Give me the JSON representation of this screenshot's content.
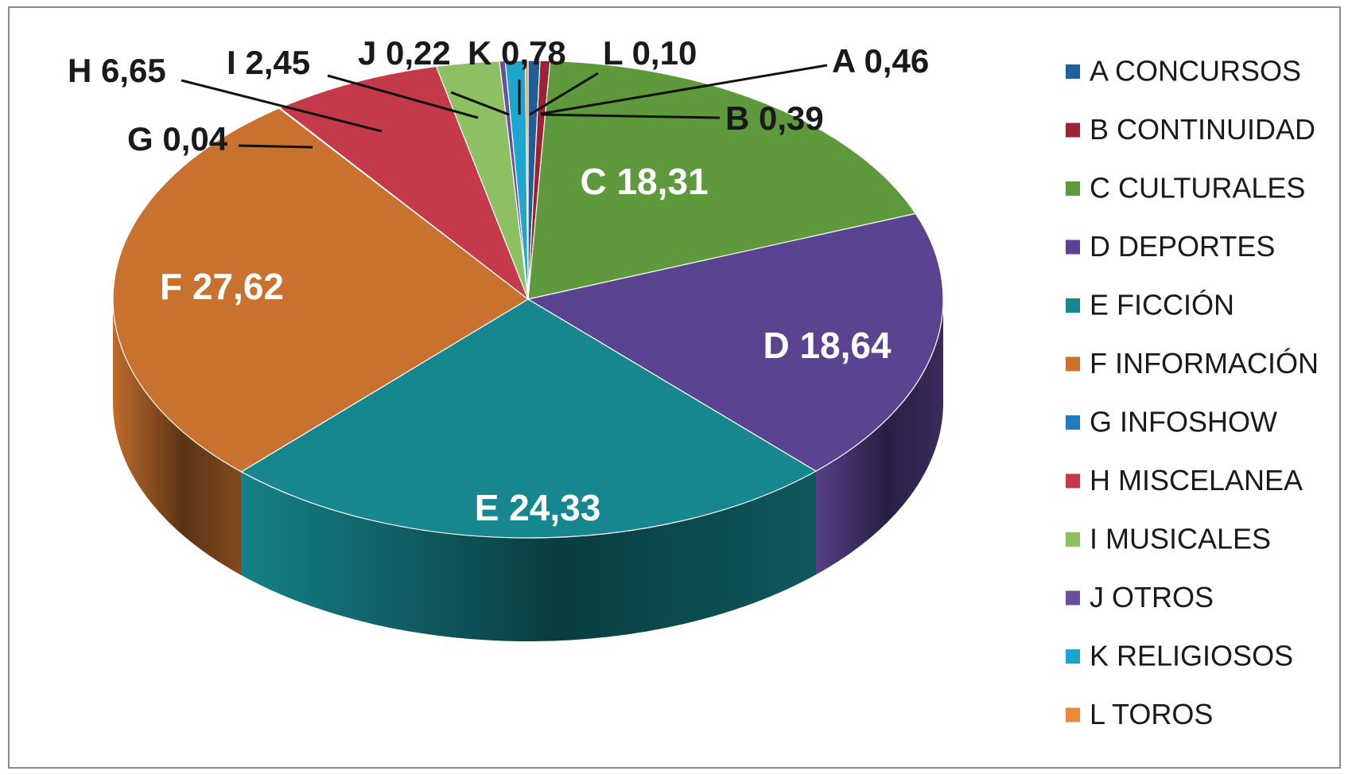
{
  "chart_data": {
    "type": "pie",
    "title": "",
    "slices": [
      {
        "key": "A",
        "category": "CONCURSOS",
        "value": 0.46,
        "value_label": "0,46",
        "color": "#1f5f9a"
      },
      {
        "key": "B",
        "category": "CONTINUIDAD",
        "value": 0.39,
        "value_label": "0,39",
        "color": "#9b2333"
      },
      {
        "key": "C",
        "category": "CULTURALES",
        "value": 18.31,
        "value_label": "18,31",
        "color": "#5e9a3c"
      },
      {
        "key": "D",
        "category": "DEPORTES",
        "value": 18.64,
        "value_label": "18,64",
        "color": "#5a4390"
      },
      {
        "key": "E",
        "category": "FICCIÓN",
        "value": 24.33,
        "value_label": "24,33",
        "color": "#16878f"
      },
      {
        "key": "F",
        "category": "INFORMACIÓN",
        "value": 27.62,
        "value_label": "27,62",
        "color": "#c9712e"
      },
      {
        "key": "G",
        "category": "INFOSHOW",
        "value": 0.04,
        "value_label": "0,04",
        "color": "#1f7dc0"
      },
      {
        "key": "H",
        "category": "MISCELANEA",
        "value": 6.65,
        "value_label": "6,65",
        "color": "#c43a4a"
      },
      {
        "key": "I",
        "category": "MUSICALES",
        "value": 2.45,
        "value_label": "2,45",
        "color": "#8cc063"
      },
      {
        "key": "J",
        "category": "OTROS",
        "value": 0.22,
        "value_label": "0,22",
        "color": "#6a4fa0"
      },
      {
        "key": "K",
        "category": "RELIGIOSOS",
        "value": 0.78,
        "value_label": "0,78",
        "color": "#1fa6cf"
      },
      {
        "key": "L",
        "category": "TOROS",
        "value": 0.1,
        "value_label": "0,10",
        "color": "#e98a3a"
      }
    ],
    "legend_position": "right",
    "style": "3d-pie"
  }
}
